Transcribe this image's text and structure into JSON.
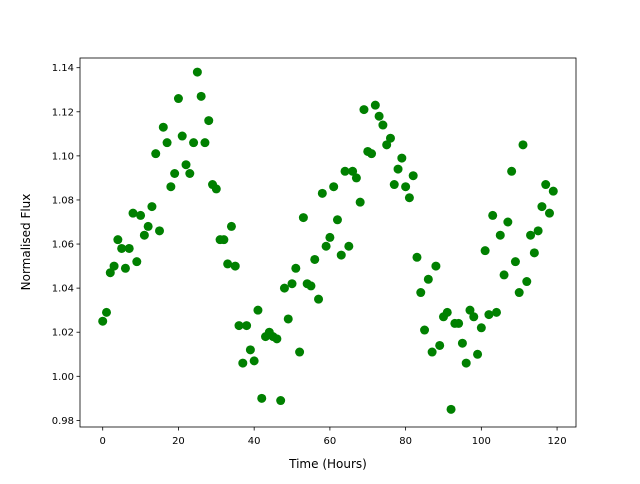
{
  "chart_data": {
    "type": "scatter",
    "title": "",
    "xlabel": "Time (Hours)",
    "ylabel": "Normalised Flux",
    "xlim": [
      -6,
      125
    ],
    "ylim": [
      0.977,
      1.1444
    ],
    "xticks": [
      0,
      20,
      40,
      60,
      80,
      100,
      120
    ],
    "yticks": [
      0.98,
      1.0,
      1.02,
      1.04,
      1.06,
      1.08,
      1.1,
      1.12,
      1.14
    ],
    "ytick_labels": [
      "0.98",
      "1.00",
      "1.02",
      "1.04",
      "1.06",
      "1.08",
      "1.10",
      "1.12",
      "1.14"
    ],
    "grid": false,
    "marker_color": "#008000",
    "x": [
      0,
      1,
      2,
      3,
      4,
      5,
      6,
      7,
      8,
      9,
      10,
      11,
      12,
      13,
      14,
      15,
      16,
      17,
      18,
      19,
      20,
      21,
      22,
      23,
      24,
      25,
      26,
      27,
      28,
      29,
      30,
      31,
      32,
      33,
      34,
      35,
      36,
      37,
      38,
      39,
      40,
      41,
      42,
      43,
      44,
      45,
      46,
      47,
      48,
      49,
      50,
      51,
      52,
      53,
      54,
      55,
      56,
      57,
      58,
      59,
      60,
      61,
      62,
      63,
      64,
      65,
      66,
      67,
      68,
      69,
      70,
      71,
      72,
      73,
      74,
      75,
      76,
      77,
      78,
      79,
      80,
      81,
      82,
      83,
      84,
      85,
      86,
      87,
      88,
      89,
      90,
      91,
      92,
      93,
      94,
      95,
      96,
      97,
      98,
      99,
      100,
      101,
      102,
      103,
      104,
      105,
      106,
      107,
      108,
      109,
      110,
      111,
      112,
      113,
      114,
      115,
      116,
      117,
      118,
      119
    ],
    "y": [
      1.025,
      1.029,
      1.047,
      1.05,
      1.062,
      1.058,
      1.049,
      1.058,
      1.074,
      1.052,
      1.073,
      1.064,
      1.068,
      1.077,
      1.101,
      1.066,
      1.113,
      1.106,
      1.086,
      1.092,
      1.126,
      1.109,
      1.096,
      1.092,
      1.106,
      1.138,
      1.127,
      1.106,
      1.116,
      1.087,
      1.085,
      1.062,
      1.062,
      1.051,
      1.068,
      1.05,
      1.023,
      1.006,
      1.023,
      1.012,
      1.007,
      1.03,
      0.99,
      1.018,
      1.02,
      1.018,
      1.017,
      0.989,
      1.04,
      1.026,
      1.042,
      1.049,
      1.011,
      1.072,
      1.042,
      1.041,
      1.053,
      1.035,
      1.083,
      1.059,
      1.063,
      1.086,
      1.071,
      1.055,
      1.093,
      1.059,
      1.093,
      1.09,
      1.079,
      1.121,
      1.102,
      1.101,
      1.123,
      1.118,
      1.114,
      1.105,
      1.108,
      1.087,
      1.094,
      1.099,
      1.086,
      1.081,
      1.091,
      1.054,
      1.038,
      1.021,
      1.044,
      1.011,
      1.05,
      1.014,
      1.027,
      1.029,
      0.985,
      1.024,
      1.024,
      1.015,
      1.006,
      1.03,
      1.027,
      1.01,
      1.022,
      1.057,
      1.028,
      1.073,
      1.029,
      1.064,
      1.046,
      1.07,
      1.093,
      1.052,
      1.038,
      1.105,
      1.043,
      1.064,
      1.056,
      1.066,
      1.077,
      1.087,
      1.074,
      1.084
    ]
  }
}
